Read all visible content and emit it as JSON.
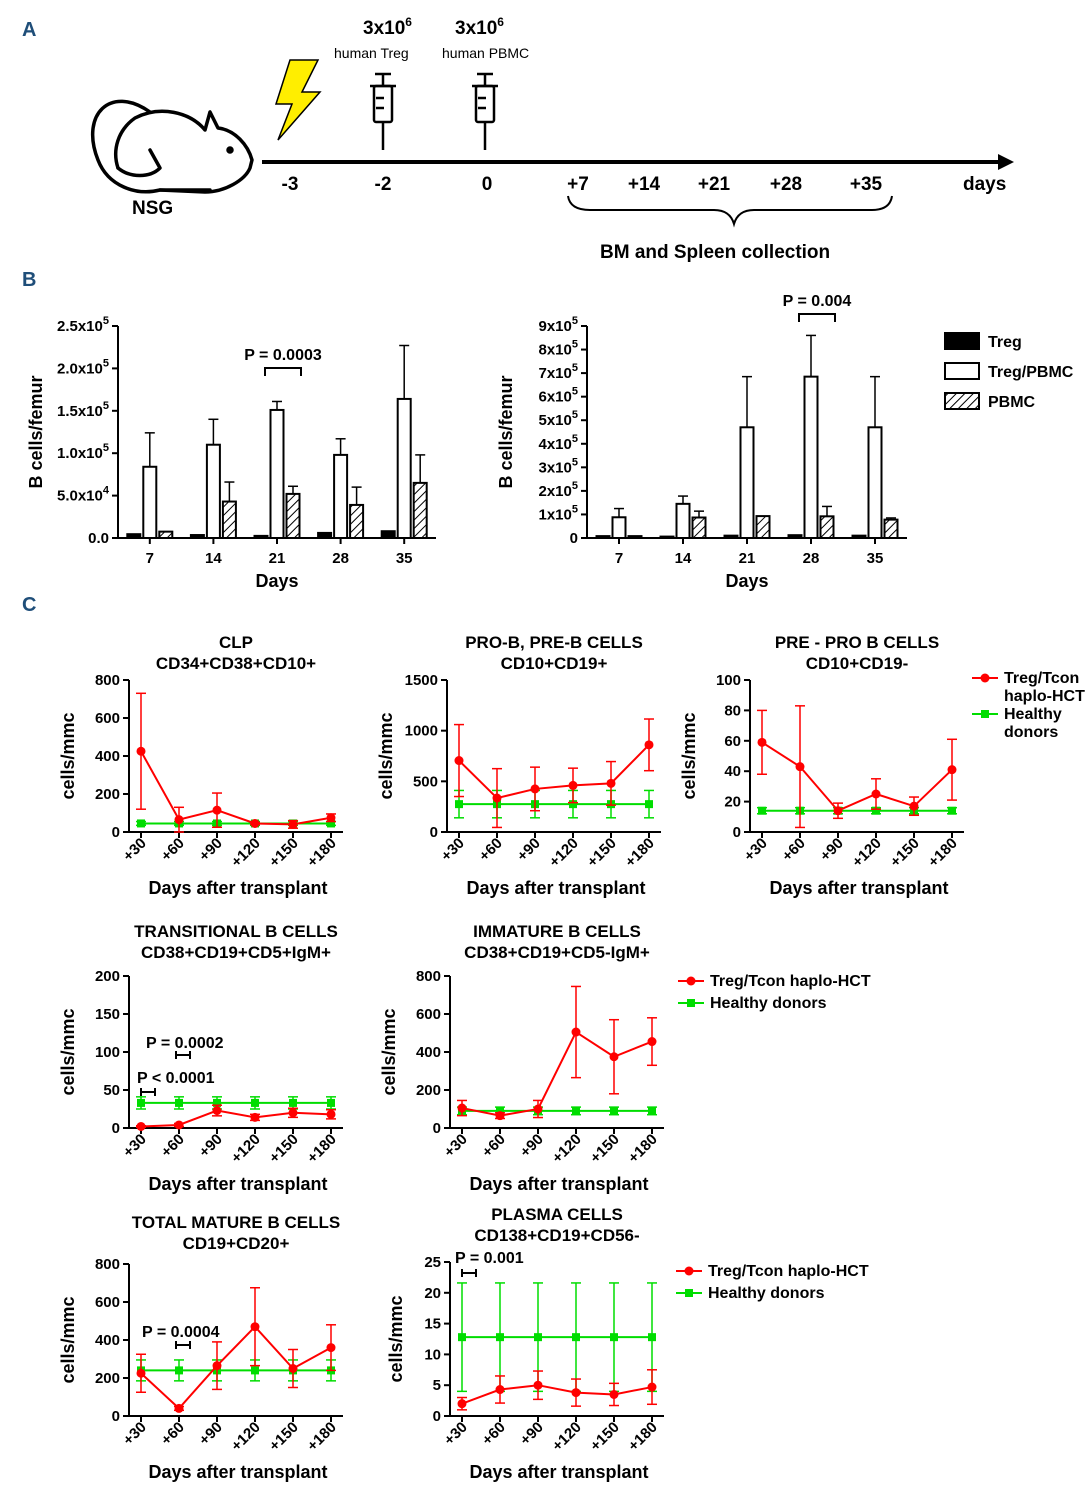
{
  "panel_labels": [
    "A",
    "B",
    "C"
  ],
  "timeline": {
    "mouse_label": "NSG",
    "treg_dose": "3x10",
    "treg_exp": "6",
    "treg_label": "human Treg",
    "pbmc_dose": "3x10",
    "pbmc_exp": "6",
    "pbmc_label": "human PBMC",
    "days": [
      "-3",
      "-2",
      "0",
      "+7",
      "+14",
      "+21",
      "+28",
      "+35"
    ],
    "days_label": "days",
    "collection_label": "BM and Spleen collection"
  },
  "colors": {
    "treg_line": "#ff0000",
    "healthy_line": "#00dd00",
    "lightning": "#ffee00",
    "panel_label": "#1f4e79"
  },
  "chart_data": [
    {
      "id": "bar_left",
      "type": "bar",
      "categories": [
        "7",
        "14",
        "21",
        "28",
        "35"
      ],
      "series": [
        {
          "name": "Treg",
          "values": [
            4500,
            3500,
            2500,
            6000,
            8000
          ],
          "errors": [
            0,
            0,
            0,
            0,
            0
          ]
        },
        {
          "name": "Treg/PBMC",
          "values": [
            84000,
            110000,
            151000,
            98000,
            164000
          ],
          "errors": [
            40000,
            30000,
            10000,
            19000,
            63000
          ]
        },
        {
          "name": "PBMC",
          "values": [
            7500,
            43000,
            52000,
            39000,
            65000
          ],
          "errors": [
            0,
            23000,
            9000,
            21000,
            33000
          ]
        }
      ],
      "ylim": [
        0,
        250000
      ],
      "yticks": [
        "0.0",
        "5.0x10",
        "1.0x10",
        "1.5x10",
        "2.0x10",
        "2.5x10"
      ],
      "ytick_exps": [
        "",
        "4",
        "5",
        "5",
        "5",
        "5"
      ],
      "xlabel": "Days",
      "ylabel": "B cells/femur",
      "annotation": "P = 0.0003"
    },
    {
      "id": "bar_right",
      "type": "bar",
      "categories": [
        "7",
        "14",
        "21",
        "28",
        "35"
      ],
      "series": [
        {
          "name": "Treg",
          "values": [
            8000,
            6000,
            10000,
            12000,
            10000
          ],
          "errors": [
            0,
            0,
            0,
            0,
            0
          ]
        },
        {
          "name": "Treg/PBMC",
          "values": [
            88000,
            145000,
            470000,
            685000,
            470000
          ],
          "errors": [
            37000,
            33000,
            215000,
            175000,
            215000
          ]
        },
        {
          "name": "PBMC",
          "values": [
            8000,
            87000,
            93000,
            92000,
            78000
          ],
          "errors": [
            0,
            27000,
            0,
            42000,
            7000
          ]
        }
      ],
      "ylim": [
        0,
        900000
      ],
      "yticks": [
        "0",
        "1x10",
        "2x10",
        "3x10",
        "4x10",
        "5x10",
        "6x10",
        "7x10",
        "8x10",
        "9x10"
      ],
      "ytick_exps": [
        "",
        "5",
        "5",
        "5",
        "5",
        "5",
        "5",
        "5",
        "5",
        "5"
      ],
      "xlabel": "Days",
      "ylabel": "B cells/femur",
      "annotation": "P = 0.004"
    },
    {
      "id": "clp",
      "type": "line",
      "title": [
        "CLP",
        "CD34+CD38+CD10+"
      ],
      "categories": [
        "+30",
        "+60",
        "+90",
        "+120",
        "+150",
        "+180"
      ],
      "ylim": [
        0,
        800
      ],
      "yticks": [
        "0",
        "200",
        "400",
        "600",
        "800"
      ],
      "xlabel": "Days after transplant",
      "ylabel": "cells/mmc",
      "series": [
        {
          "name": "Treg/Tcon haplo-HCT",
          "values": [
            425,
            65,
            115,
            45,
            40,
            75
          ],
          "errors": [
            305,
            65,
            90,
            5,
            20,
            20
          ]
        },
        {
          "name": "Healthy donors",
          "values": [
            45,
            45,
            45,
            45,
            45,
            45
          ],
          "errors": [
            10,
            10,
            10,
            10,
            10,
            10
          ]
        }
      ]
    },
    {
      "id": "prob",
      "type": "line",
      "title": [
        "PRO-B, PRE-B CELLS",
        "CD10+CD19+"
      ],
      "categories": [
        "+30",
        "+60",
        "+90",
        "+120",
        "+150",
        "+180"
      ],
      "ylim": [
        0,
        1500
      ],
      "yticks": [
        "0",
        "500",
        "1000",
        "1500"
      ],
      "xlabel": "Days after transplant",
      "ylabel": "cells/mmc",
      "series": [
        {
          "name": "Treg/Tcon haplo-HCT",
          "values": [
            705,
            335,
            425,
            460,
            480,
            860
          ],
          "errors": [
            355,
            290,
            215,
            170,
            215,
            255
          ]
        },
        {
          "name": "Healthy donors",
          "values": [
            275,
            275,
            275,
            275,
            275,
            275
          ],
          "errors": [
            135,
            135,
            135,
            135,
            135,
            135
          ]
        }
      ]
    },
    {
      "id": "preprob",
      "type": "line",
      "title": [
        "PRE - PRO B CELLS",
        "CD10+CD19-"
      ],
      "categories": [
        "+30",
        "+60",
        "+90",
        "+120",
        "+150",
        "+180"
      ],
      "ylim": [
        0,
        100
      ],
      "yticks": [
        "0",
        "20",
        "40",
        "60",
        "80",
        "100"
      ],
      "xlabel": "Days after transplant",
      "ylabel": "cells/mmc",
      "series": [
        {
          "name": "Treg/Tcon haplo-HCT",
          "values": [
            59,
            43,
            14,
            25,
            17,
            41
          ],
          "errors": [
            21,
            40,
            5,
            10,
            6,
            20
          ]
        },
        {
          "name": "Healthy donors",
          "values": [
            14,
            14,
            14,
            14,
            14,
            14
          ],
          "errors": [
            2,
            2,
            2,
            2,
            2,
            2
          ]
        }
      ],
      "legend": [
        "Treg/Tcon",
        "haplo-HCT",
        "Healthy",
        "donors"
      ]
    },
    {
      "id": "transitional",
      "type": "line",
      "title": [
        "TRANSITIONAL B CELLS",
        "CD38+CD19+CD5+IgM+"
      ],
      "categories": [
        "+30",
        "+60",
        "+90",
        "+120",
        "+150",
        "+180"
      ],
      "ylim": [
        0,
        200
      ],
      "yticks": [
        "0",
        "50",
        "100",
        "150",
        "200"
      ],
      "xlabel": "Days after transplant",
      "ylabel": "cells/mmc",
      "series": [
        {
          "name": "Treg/Tcon haplo-HCT",
          "values": [
            2,
            4,
            23,
            14,
            20,
            18
          ],
          "errors": [
            1,
            2,
            7,
            4,
            6,
            6
          ]
        },
        {
          "name": "Healthy donors",
          "values": [
            33,
            33,
            33,
            33,
            33,
            33
          ],
          "errors": [
            8,
            8,
            8,
            8,
            8,
            8
          ]
        }
      ],
      "annotations": [
        "P = 0.0002",
        "P < 0.0001"
      ]
    },
    {
      "id": "immature",
      "type": "line",
      "title": [
        "IMMATURE B CELLS",
        "CD38+CD19+CD5-IgM+"
      ],
      "categories": [
        "+30",
        "+60",
        "+90",
        "+120",
        "+150",
        "+180"
      ],
      "ylim": [
        0,
        800
      ],
      "yticks": [
        "0",
        "200",
        "400",
        "600",
        "800"
      ],
      "xlabel": "Days after transplant",
      "ylabel": "cells/mmc",
      "series": [
        {
          "name": "Treg/Tcon haplo-HCT",
          "values": [
            105,
            65,
            100,
            505,
            375,
            455
          ],
          "errors": [
            40,
            15,
            45,
            240,
            195,
            125
          ]
        },
        {
          "name": "Healthy donors",
          "values": [
            90,
            90,
            90,
            90,
            90,
            90
          ],
          "errors": [
            20,
            20,
            20,
            20,
            20,
            20
          ]
        }
      ],
      "legend": [
        "Treg/Tcon haplo-HCT",
        "Healthy donors"
      ]
    },
    {
      "id": "mature",
      "type": "line",
      "title": [
        "TOTAL MATURE B CELLS",
        "CD19+CD20+"
      ],
      "categories": [
        "+30",
        "+60",
        "+90",
        "+120",
        "+150",
        "+180"
      ],
      "ylim": [
        0,
        800
      ],
      "yticks": [
        "0",
        "200",
        "400",
        "600",
        "800"
      ],
      "xlabel": "Days after transplant",
      "ylabel": "cells/mmc",
      "series": [
        {
          "name": "Treg/Tcon haplo-HCT",
          "values": [
            225,
            40,
            265,
            470,
            250,
            360
          ],
          "errors": [
            100,
            10,
            125,
            205,
            100,
            120
          ]
        },
        {
          "name": "Healthy donors",
          "values": [
            240,
            240,
            240,
            240,
            240,
            240
          ],
          "errors": [
            55,
            55,
            55,
            55,
            55,
            55
          ]
        }
      ],
      "annotations": [
        "P = 0.0004"
      ]
    },
    {
      "id": "plasma",
      "type": "line",
      "title": [
        "PLASMA CELLS",
        "CD138+CD19+CD56-"
      ],
      "categories": [
        "+30",
        "+60",
        "+90",
        "+120",
        "+150",
        "+180"
      ],
      "ylim": [
        0,
        25
      ],
      "yticks": [
        "0",
        "5",
        "10",
        "15",
        "20",
        "25"
      ],
      "xlabel": "Days after transplant",
      "ylabel": "cells/mmc",
      "series": [
        {
          "name": "Treg/Tcon haplo-HCT",
          "values": [
            2,
            4.3,
            5,
            3.8,
            3.5,
            4.7
          ],
          "errors": [
            1,
            2.2,
            2.3,
            2.2,
            1.8,
            2.8
          ]
        },
        {
          "name": "Healthy donors",
          "values": [
            12.8,
            12.8,
            12.8,
            12.8,
            12.8,
            12.8
          ],
          "errors": [
            8.8,
            8.8,
            8.8,
            8.8,
            8.8,
            8.8
          ]
        }
      ],
      "legend": [
        "Treg/Tcon haplo-HCT",
        "Healthy donors"
      ],
      "annotations": [
        "P = 0.001"
      ]
    }
  ],
  "bar_legend": [
    "Treg",
    "Treg/PBMC",
    "PBMC"
  ]
}
